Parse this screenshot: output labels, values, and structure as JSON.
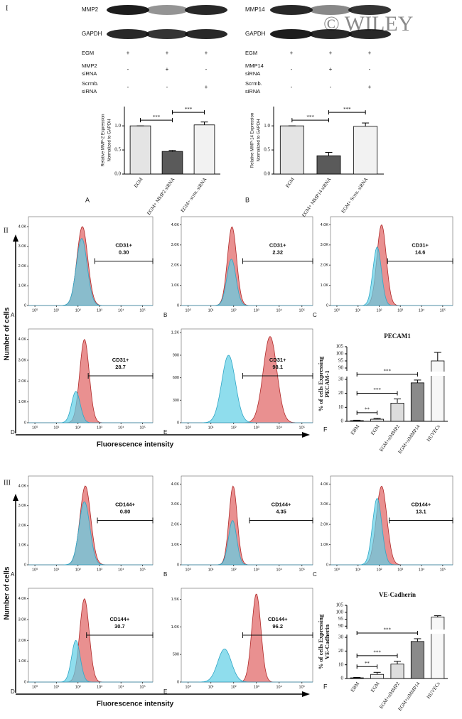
{
  "watermark": "© WILEY",
  "section_labels": [
    "I",
    "II",
    "III"
  ],
  "blots": [
    {
      "bands": [
        "MMP2",
        "GAPDH"
      ],
      "rows": [
        {
          "label": [
            "EGM"
          ],
          "marks": [
            "+",
            "+",
            "+"
          ]
        },
        {
          "label": [
            "MMP2",
            "siRNA"
          ],
          "marks": [
            "-",
            "+",
            "-"
          ]
        },
        {
          "label": [
            "Scrmb.",
            "siRNA"
          ],
          "marks": [
            "-",
            "-",
            "+"
          ]
        }
      ]
    },
    {
      "bands": [
        "MMP14",
        "GAPDH"
      ],
      "rows": [
        {
          "label": [
            "EGM"
          ],
          "marks": [
            "+",
            "+",
            "+"
          ]
        },
        {
          "label": [
            "MMP14",
            "siRNA"
          ],
          "marks": [
            "-",
            "+",
            "-"
          ]
        },
        {
          "label": [
            "Scrmb.",
            "siRNA"
          ],
          "marks": [
            "-",
            "-",
            "+"
          ]
        }
      ]
    }
  ],
  "chart_data": [
    {
      "type": "bar",
      "panel_label": "A",
      "ylabel": [
        "Relative MMP-2 Expression",
        "Normalized to GAPDH"
      ],
      "categories": [
        "EGM",
        "EGM+ MMP2 siRNA",
        "EGM+ scrm. siRNA"
      ],
      "values": [
        1.0,
        0.47,
        1.02
      ],
      "errors": [
        0,
        0.02,
        0.06
      ],
      "colors": [
        "#e4e4e4",
        "#5a5a5a",
        "#f2f2f2"
      ],
      "ylim": [
        0,
        1.4
      ],
      "yticks": [
        {
          "value": 0,
          "label": "0.0"
        },
        {
          "value": 0.5,
          "label": "0.5"
        },
        {
          "value": 1,
          "label": "1.0"
        }
      ],
      "significance": [
        {
          "pair": [
            "EGM",
            "EGM+ MMP2 siRNA"
          ],
          "label": "***"
        },
        {
          "pair": [
            "EGM+ MMP2 siRNA",
            "EGM+ scrm. siRNA"
          ],
          "label": "***"
        }
      ]
    },
    {
      "type": "bar",
      "panel_label": "B",
      "ylabel": [
        "Relative MMP-14 Expression",
        "Normalized to GAPDH"
      ],
      "categories": [
        "EGM",
        "EGM+ MMP14 siRNA",
        "EGM+ Scrm. siRNA"
      ],
      "values": [
        1.0,
        0.38,
        0.99
      ],
      "errors": [
        0,
        0.07,
        0.07
      ],
      "colors": [
        "#e4e4e4",
        "#5a5a5a",
        "#f2f2f2"
      ],
      "ylim": [
        0,
        1.4
      ],
      "yticks": [
        {
          "value": 0,
          "label": "0.0"
        },
        {
          "value": 0.5,
          "label": "0.5"
        },
        {
          "value": 1,
          "label": "1.0"
        }
      ],
      "significance": [
        {
          "pair": [
            "EGM",
            "EGM+ MMP14 siRNA"
          ],
          "label": "***"
        },
        {
          "pair": [
            "EGM+ MMP14 siRNA",
            "EGM+ Scrm. siRNA"
          ],
          "label": "***"
        }
      ]
    },
    {
      "type": "bar",
      "title": "PECAM1",
      "panel_label": "F",
      "ylabel": [
        "% of cells Expressing",
        "PECAM-1"
      ],
      "categories": [
        "EBM",
        "EGM",
        "EGM+siMMP2",
        "EGM+siMMP14",
        "HUVECs"
      ],
      "values": [
        0.5,
        1.5,
        13,
        27.5,
        95
      ],
      "errors": [
        0.3,
        0.6,
        3,
        2,
        6
      ],
      "colors": [
        "#222222",
        "#eeeeee",
        "#dddddd",
        "#8a8a8a",
        "#f7f7f7"
      ],
      "ylim": [
        0,
        105
      ],
      "ybreak": [
        32,
        88
      ],
      "yticks": [
        0,
        10,
        20,
        30,
        90,
        95,
        100,
        105
      ],
      "significance": [
        {
          "pair": [
            "EBM",
            "EGM"
          ],
          "label": "**"
        },
        {
          "pair": [
            "EBM",
            "EGM+siMMP2"
          ],
          "label": "***"
        },
        {
          "pair": [
            "EBM",
            "EGM+siMMP14"
          ],
          "label": "***"
        }
      ]
    },
    {
      "type": "bar",
      "title": "VE-Cadherin",
      "panel_label": "F",
      "ylabel": [
        "% of cells Expressing",
        "VE-Cadherin"
      ],
      "categories": [
        "EBM",
        "EGM",
        "EGM+siMMP2",
        "EGM+siMMP14",
        "HUVECs"
      ],
      "values": [
        0.5,
        3,
        10.5,
        27,
        96.5
      ],
      "errors": [
        0.3,
        1.5,
        2,
        2,
        1
      ],
      "colors": [
        "#222222",
        "#eeeeee",
        "#dddddd",
        "#8a8a8a",
        "#f7f7f7"
      ],
      "ylim": [
        0,
        105
      ],
      "ybreak": [
        32,
        88
      ],
      "yticks": [
        0,
        10,
        20,
        30,
        90,
        95,
        100,
        105
      ],
      "significance": [
        {
          "pair": [
            "EBM",
            "EGM"
          ],
          "label": "**"
        },
        {
          "pair": [
            "EBM",
            "EGM+siMMP2"
          ],
          "label": "***"
        },
        {
          "pair": [
            "EBM",
            "EGM+siMMP14"
          ],
          "label": "***"
        }
      ]
    }
  ],
  "flow_xscale": "log",
  "flow_xlim": [
    0.5,
    300000
  ],
  "flow_xticks": [
    {
      "value": 1,
      "label": "10⁰"
    },
    {
      "value": 10,
      "label": "10¹"
    },
    {
      "value": 100,
      "label": "10²"
    },
    {
      "value": 1000,
      "label": "10³"
    },
    {
      "value": 10000,
      "label": "10⁴"
    },
    {
      "value": 100000,
      "label": "10⁵"
    }
  ],
  "flow_colors": [
    "#5fcfe6",
    "#e57c7c"
  ],
  "flow_strokes": [
    "#2fa6c6",
    "#b02a2a"
  ],
  "sections": [
    {
      "ylabel": "Number of cells",
      "xlabel": "Fluorescence intensity",
      "panels": [
        {
          "letter": "A",
          "gate": [
            "CD31+",
            "0.30"
          ],
          "gate_start": 600,
          "ylim": [
            0,
            4500
          ],
          "yticks": [
            0,
            {
              "value": 1000,
              "label": "1.0K"
            },
            {
              "value": 2000,
              "label": "2.0K"
            },
            {
              "value": 3000,
              "label": "3.0K"
            },
            {
              "value": 4000,
              "label": "4.0K"
            }
          ],
          "curves": [
            {
              "center": 150,
              "sigma": 0.25,
              "height": 3400
            },
            {
              "center": 160,
              "sigma": 0.25,
              "height": 4000
            }
          ]
        },
        {
          "letter": "B",
          "gate": [
            "CD31+",
            "2.32"
          ],
          "gate_start": 250,
          "ylim": [
            0,
            4400
          ],
          "yticks": [
            0,
            {
              "value": 1000,
              "label": "1.0K"
            },
            {
              "value": 2000,
              "label": "2.0K"
            },
            {
              "value": 3000,
              "label": "3.0K"
            },
            {
              "value": 4000,
              "label": "4.0K"
            }
          ],
          "curves": [
            {
              "center": 80,
              "sigma": 0.2,
              "height": 2300
            },
            {
              "center": 85,
              "sigma": 0.2,
              "height": 3900
            }
          ]
        },
        {
          "letter": "C",
          "gate": [
            "CD31+",
            "14.6"
          ],
          "gate_start": 250,
          "ylim": [
            0,
            4400
          ],
          "yticks": [
            0,
            {
              "value": 1000,
              "label": "1.0K"
            },
            {
              "value": 2000,
              "label": "2.0K"
            },
            {
              "value": 3000,
              "label": "3.0K"
            },
            {
              "value": 4000,
              "label": "4.0K"
            }
          ],
          "curves": [
            {
              "center": 80,
              "sigma": 0.2,
              "height": 2900
            },
            {
              "center": 130,
              "sigma": 0.22,
              "height": 4000
            }
          ]
        },
        {
          "letter": "D",
          "gate": [
            "CD31+",
            "28.7"
          ],
          "gate_start": 300,
          "ylim": [
            0,
            4500
          ],
          "yticks": [
            0,
            {
              "value": 1000,
              "label": "1.0K"
            },
            {
              "value": 2000,
              "label": "2.0K"
            },
            {
              "value": 3000,
              "label": "3.0K"
            },
            {
              "value": 4000,
              "label": "4.0K"
            }
          ],
          "curves": [
            {
              "center": 80,
              "sigma": 0.2,
              "height": 1500
            },
            {
              "center": 200,
              "sigma": 0.22,
              "height": 4000
            }
          ]
        },
        {
          "letter": "E",
          "gate": [
            "CD31+",
            "98.1"
          ],
          "gate_start": 250,
          "ylim": [
            0,
            1250
          ],
          "yticks": [
            0,
            300,
            600,
            900,
            {
              "value": 1200,
              "label": "1.2K"
            }
          ],
          "curves": [
            {
              "center": 60,
              "sigma": 0.3,
              "height": 900
            },
            {
              "center": 4000,
              "sigma": 0.3,
              "height": 1150
            }
          ]
        }
      ]
    },
    {
      "ylabel": "Number of cells",
      "xlabel": "Fluorescence intensity",
      "panels": [
        {
          "letter": "A",
          "gate": [
            "CD144+",
            "0.80"
          ],
          "gate_start": 800,
          "ylim": [
            0,
            4500
          ],
          "yticks": [
            0,
            {
              "value": 1000,
              "label": "1.0K"
            },
            {
              "value": 2000,
              "label": "2.0K"
            },
            {
              "value": 3000,
              "label": "3.0K"
            },
            {
              "value": 4000,
              "label": "4.0K"
            }
          ],
          "curves": [
            {
              "center": 200,
              "sigma": 0.25,
              "height": 3200
            },
            {
              "center": 220,
              "sigma": 0.25,
              "height": 4000
            }
          ]
        },
        {
          "letter": "B",
          "gate": [
            "CD144+",
            "4.35"
          ],
          "gate_start": 500,
          "ylim": [
            0,
            4400
          ],
          "yticks": [
            0,
            {
              "value": 1000,
              "label": "1.0K"
            },
            {
              "value": 2000,
              "label": "2.0K"
            },
            {
              "value": 3000,
              "label": "3.0K"
            },
            {
              "value": 4000,
              "label": "4.0K"
            }
          ],
          "curves": [
            {
              "center": 90,
              "sigma": 0.18,
              "height": 2200
            },
            {
              "center": 95,
              "sigma": 0.18,
              "height": 3900
            }
          ]
        },
        {
          "letter": "C",
          "gate": [
            "CD144+",
            "13.1"
          ],
          "gate_start": 300,
          "ylim": [
            0,
            4400
          ],
          "yticks": [
            0,
            {
              "value": 1000,
              "label": "1.0K"
            },
            {
              "value": 2000,
              "label": "2.0K"
            },
            {
              "value": 3000,
              "label": "3.0K"
            },
            {
              "value": 4000,
              "label": "4.0K"
            }
          ],
          "curves": [
            {
              "center": 80,
              "sigma": 0.22,
              "height": 3300
            },
            {
              "center": 130,
              "sigma": 0.25,
              "height": 3900
            }
          ]
        },
        {
          "letter": "D",
          "gate": [
            "CD144+",
            "30.7"
          ],
          "gate_start": 250,
          "ylim": [
            0,
            4500
          ],
          "yticks": [
            0,
            {
              "value": 1000,
              "label": "1.0K"
            },
            {
              "value": 2000,
              "label": "2.0K"
            },
            {
              "value": 3000,
              "label": "3.0K"
            },
            {
              "value": 4000,
              "label": "4.0K"
            }
          ],
          "curves": [
            {
              "center": 80,
              "sigma": 0.2,
              "height": 2000
            },
            {
              "center": 200,
              "sigma": 0.22,
              "height": 4000
            }
          ]
        },
        {
          "letter": "E",
          "gate": [
            "CD144+",
            "96.2"
          ],
          "gate_start": 250,
          "ylim": [
            0,
            1700
          ],
          "yticks": [
            0,
            500,
            {
              "value": 1000,
              "label": "1.0K"
            },
            {
              "value": 1500,
              "label": "1.5K"
            }
          ],
          "curves": [
            {
              "center": 40,
              "sigma": 0.3,
              "height": 600
            },
            {
              "center": 1000,
              "sigma": 0.2,
              "height": 1600
            }
          ]
        }
      ]
    }
  ]
}
